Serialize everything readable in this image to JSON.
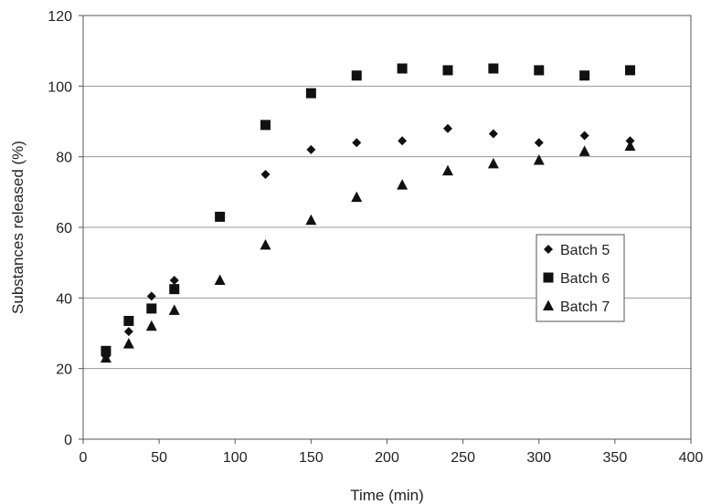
{
  "chart_data": {
    "type": "scatter",
    "title": "",
    "xlabel": "Time (min)",
    "ylabel": "Substances released (%)",
    "xlim": [
      0,
      400
    ],
    "ylim": [
      0,
      120
    ],
    "xticks": [
      0,
      50,
      100,
      150,
      200,
      250,
      300,
      350,
      400
    ],
    "yticks": [
      0,
      20,
      40,
      60,
      80,
      100,
      120
    ],
    "grid": "horizontal",
    "legend_position": "right",
    "series": [
      {
        "name": "Batch 5",
        "marker": "diamond",
        "color": "#111111",
        "x": [
          15,
          30,
          45,
          60,
          120,
          150,
          180,
          210,
          240,
          270,
          300,
          330,
          360
        ],
        "y": [
          23.5,
          30.5,
          40.5,
          45,
          75,
          82,
          84,
          84.5,
          88,
          86.5,
          84,
          86,
          84.5
        ]
      },
      {
        "name": "Batch 6",
        "marker": "square",
        "color": "#111111",
        "x": [
          15,
          30,
          45,
          60,
          90,
          120,
          150,
          180,
          210,
          240,
          270,
          300,
          330,
          360
        ],
        "y": [
          25,
          33.5,
          37,
          42.5,
          63,
          89,
          98,
          103,
          105,
          104.5,
          105,
          104.5,
          103,
          104.5
        ]
      },
      {
        "name": "Batch 7",
        "marker": "triangle",
        "color": "#111111",
        "x": [
          15,
          30,
          45,
          60,
          90,
          120,
          150,
          180,
          210,
          240,
          270,
          300,
          330,
          360
        ],
        "y": [
          23,
          27,
          32,
          36.5,
          45,
          55,
          62,
          68.5,
          72,
          76,
          78,
          79,
          81.5,
          83
        ]
      }
    ]
  }
}
